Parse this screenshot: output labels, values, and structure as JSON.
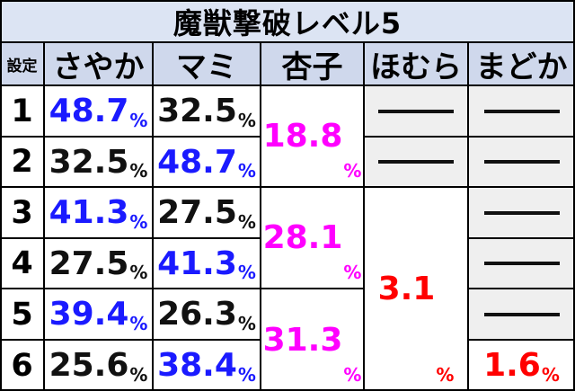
{
  "title": "魔獣撃破レベル5",
  "headers": {
    "setting": "設定",
    "sayaka": "さやか",
    "mami": "マミ",
    "kyoko": "杏子",
    "homura": "ほむら",
    "madoka": "まどか"
  },
  "rows": [
    {
      "setting": "1",
      "sayaka": "48.7",
      "mami": "32.5"
    },
    {
      "setting": "2",
      "sayaka": "32.5",
      "mami": "48.7"
    },
    {
      "setting": "3",
      "sayaka": "41.3",
      "mami": "27.5"
    },
    {
      "setting": "4",
      "sayaka": "27.5",
      "mami": "41.3"
    },
    {
      "setting": "5",
      "sayaka": "39.4",
      "mami": "26.3"
    },
    {
      "setting": "6",
      "sayaka": "25.6",
      "mami": "38.4"
    }
  ],
  "kyoko": {
    "s12": "18.8",
    "s34": "28.1",
    "s56": "31.3"
  },
  "homura": {
    "s36": "3.1"
  },
  "madoka": {
    "s6": "1.6"
  },
  "unit": "%",
  "colors": {
    "high": "#1a1aff",
    "normal": "#111111",
    "kyoko": "#ff00ff",
    "rare": "#ff0000",
    "header_bg": "#cfd8ec",
    "none_bg": "#efefef"
  },
  "none_marker": "dash"
}
